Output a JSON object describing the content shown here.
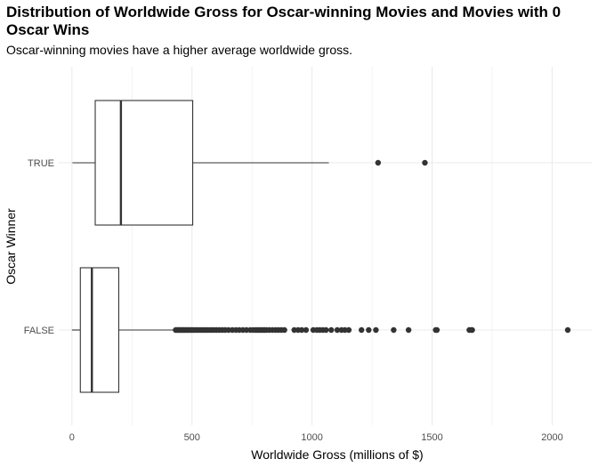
{
  "chart_data": {
    "type": "boxplot",
    "title": "Distribution of Worldwide Gross for Oscar-winning Movies and Movies with 0 Oscar Wins",
    "subtitle": "Oscar-winning movies have a higher average worldwide gross.",
    "xlabel": "Worldwide Gross (millions of $)",
    "ylabel": "Oscar Winner",
    "xlim": [
      -55,
      2165
    ],
    "xticks": [
      0,
      500,
      1000,
      1500,
      2000
    ],
    "grid": true,
    "colors": {
      "box_stroke": "#333333",
      "points": "#333333",
      "grid": "#ebebeb"
    },
    "categories": [
      "TRUE",
      "FALSE"
    ],
    "boxes": [
      {
        "category": "TRUE",
        "min": 2,
        "q1": 97,
        "median": 204,
        "q3": 503,
        "max": 1070,
        "outliers": [
          1275,
          1470
        ]
      },
      {
        "category": "FALSE",
        "min": 0,
        "q1": 35,
        "median": 83,
        "q3": 195,
        "max": 430,
        "outliers": [
          432,
          438,
          442,
          447,
          452,
          458,
          463,
          468,
          474,
          480,
          486,
          492,
          498,
          505,
          512,
          520,
          528,
          536,
          545,
          553,
          562,
          572,
          582,
          592,
          603,
          614,
          626,
          638,
          652,
          668,
          683,
          697,
          712,
          727,
          743,
          755,
          766,
          774,
          781,
          788,
          795,
          802,
          810,
          822,
          835,
          848,
          860,
          872,
          885,
          926,
          942,
          957,
          975,
          1005,
          1020,
          1032,
          1045,
          1058,
          1080,
          1105,
          1123,
          1137,
          1153,
          1206,
          1236,
          1266,
          1340,
          1402,
          1515,
          1520,
          1655,
          1662,
          1667,
          2065
        ]
      }
    ]
  }
}
